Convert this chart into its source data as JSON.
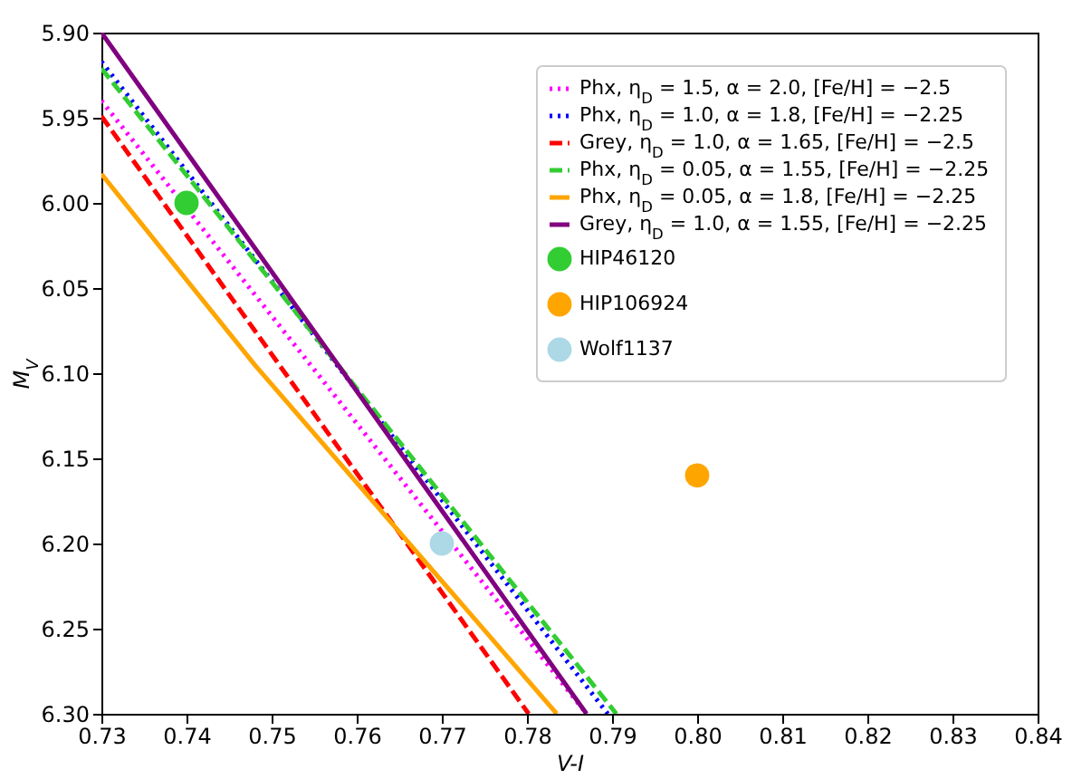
{
  "chart_data": {
    "type": "line",
    "xlabel": "V-I",
    "ylabel": "M$_{V}$",
    "xlim": [
      0.73,
      0.84
    ],
    "xticks": [
      0.73,
      0.74,
      0.75,
      0.76,
      0.77,
      0.78,
      0.79,
      {
        "value": 0.8,
        "label": "0.80"
      },
      0.81,
      0.82,
      0.83,
      0.84
    ],
    "ylim": [
      6.3,
      5.9
    ],
    "yticks": [
      {
        "value": 5.9,
        "label": "5.90"
      },
      5.95,
      {
        "value": 6.0,
        "label": "6.00"
      },
      6.05,
      {
        "value": 6.1,
        "label": "6.10"
      },
      6.15,
      {
        "value": 6.2,
        "label": "6.20"
      },
      6.25,
      {
        "value": 6.3,
        "label": "6.30"
      }
    ],
    "grid": false,
    "legend": "top right",
    "series": [
      {
        "name": "Phx, η$_{D}$ = 1.5, α = 2.0, [Fe/H] = −2.5",
        "line_style": "dotted",
        "color": "#ff00ff",
        "x": [
          0.73,
          0.787
        ],
        "values": [
          5.94,
          6.3
        ]
      },
      {
        "name": "Phx, η$_{D}$ = 1.0, α = 1.8, [Fe/H] = −2.25",
        "line_style": "dotted",
        "color": "#0000ff",
        "x": [
          0.73,
          0.7895
        ],
        "values": [
          5.917,
          6.3
        ]
      },
      {
        "name": "Grey, η$_{D}$ = 1.0, α = 1.65, [Fe/H] = −2.5",
        "line_style": "dashed",
        "color": "#ff0000",
        "x": [
          0.73,
          0.7802
        ],
        "values": [
          5.949,
          6.3
        ]
      },
      {
        "name": "Phx, η$_{D}$ = 0.05, α = 1.55, [Fe/H] = −2.25",
        "line_style": "dashed",
        "color": "#32cd32",
        "x": [
          0.73,
          0.7905
        ],
        "values": [
          5.921,
          6.3
        ]
      },
      {
        "name": "Phx, η$_{D}$ = 0.05, α = 1.8, [Fe/H] = −2.25",
        "line_style": "solid",
        "color": "#ffa500",
        "x": [
          0.73,
          0.748,
          0.7835
        ],
        "values": [
          5.983,
          6.095,
          6.3
        ]
      },
      {
        "name": "Grey, η$_{D}$ = 1.0, α = 1.55, [Fe/H] = −2.25",
        "line_style": "solid",
        "color": "#800080",
        "x": [
          0.73,
          0.787
        ],
        "values": [
          5.9,
          6.3
        ]
      },
      {
        "name": "HIP46120",
        "type": "scatter",
        "marker": "circle",
        "color": "#32cd32",
        "x": [
          0.74
        ],
        "values": [
          6.0
        ]
      },
      {
        "name": "HIP106924",
        "type": "scatter",
        "marker": "circle",
        "color": "#ffa500",
        "x": [
          0.8
        ],
        "values": [
          6.16
        ]
      },
      {
        "name": "Wolf1137",
        "type": "scatter",
        "marker": "circle",
        "color": "#add8e6",
        "x": [
          0.77
        ],
        "values": [
          6.2
        ]
      }
    ]
  }
}
